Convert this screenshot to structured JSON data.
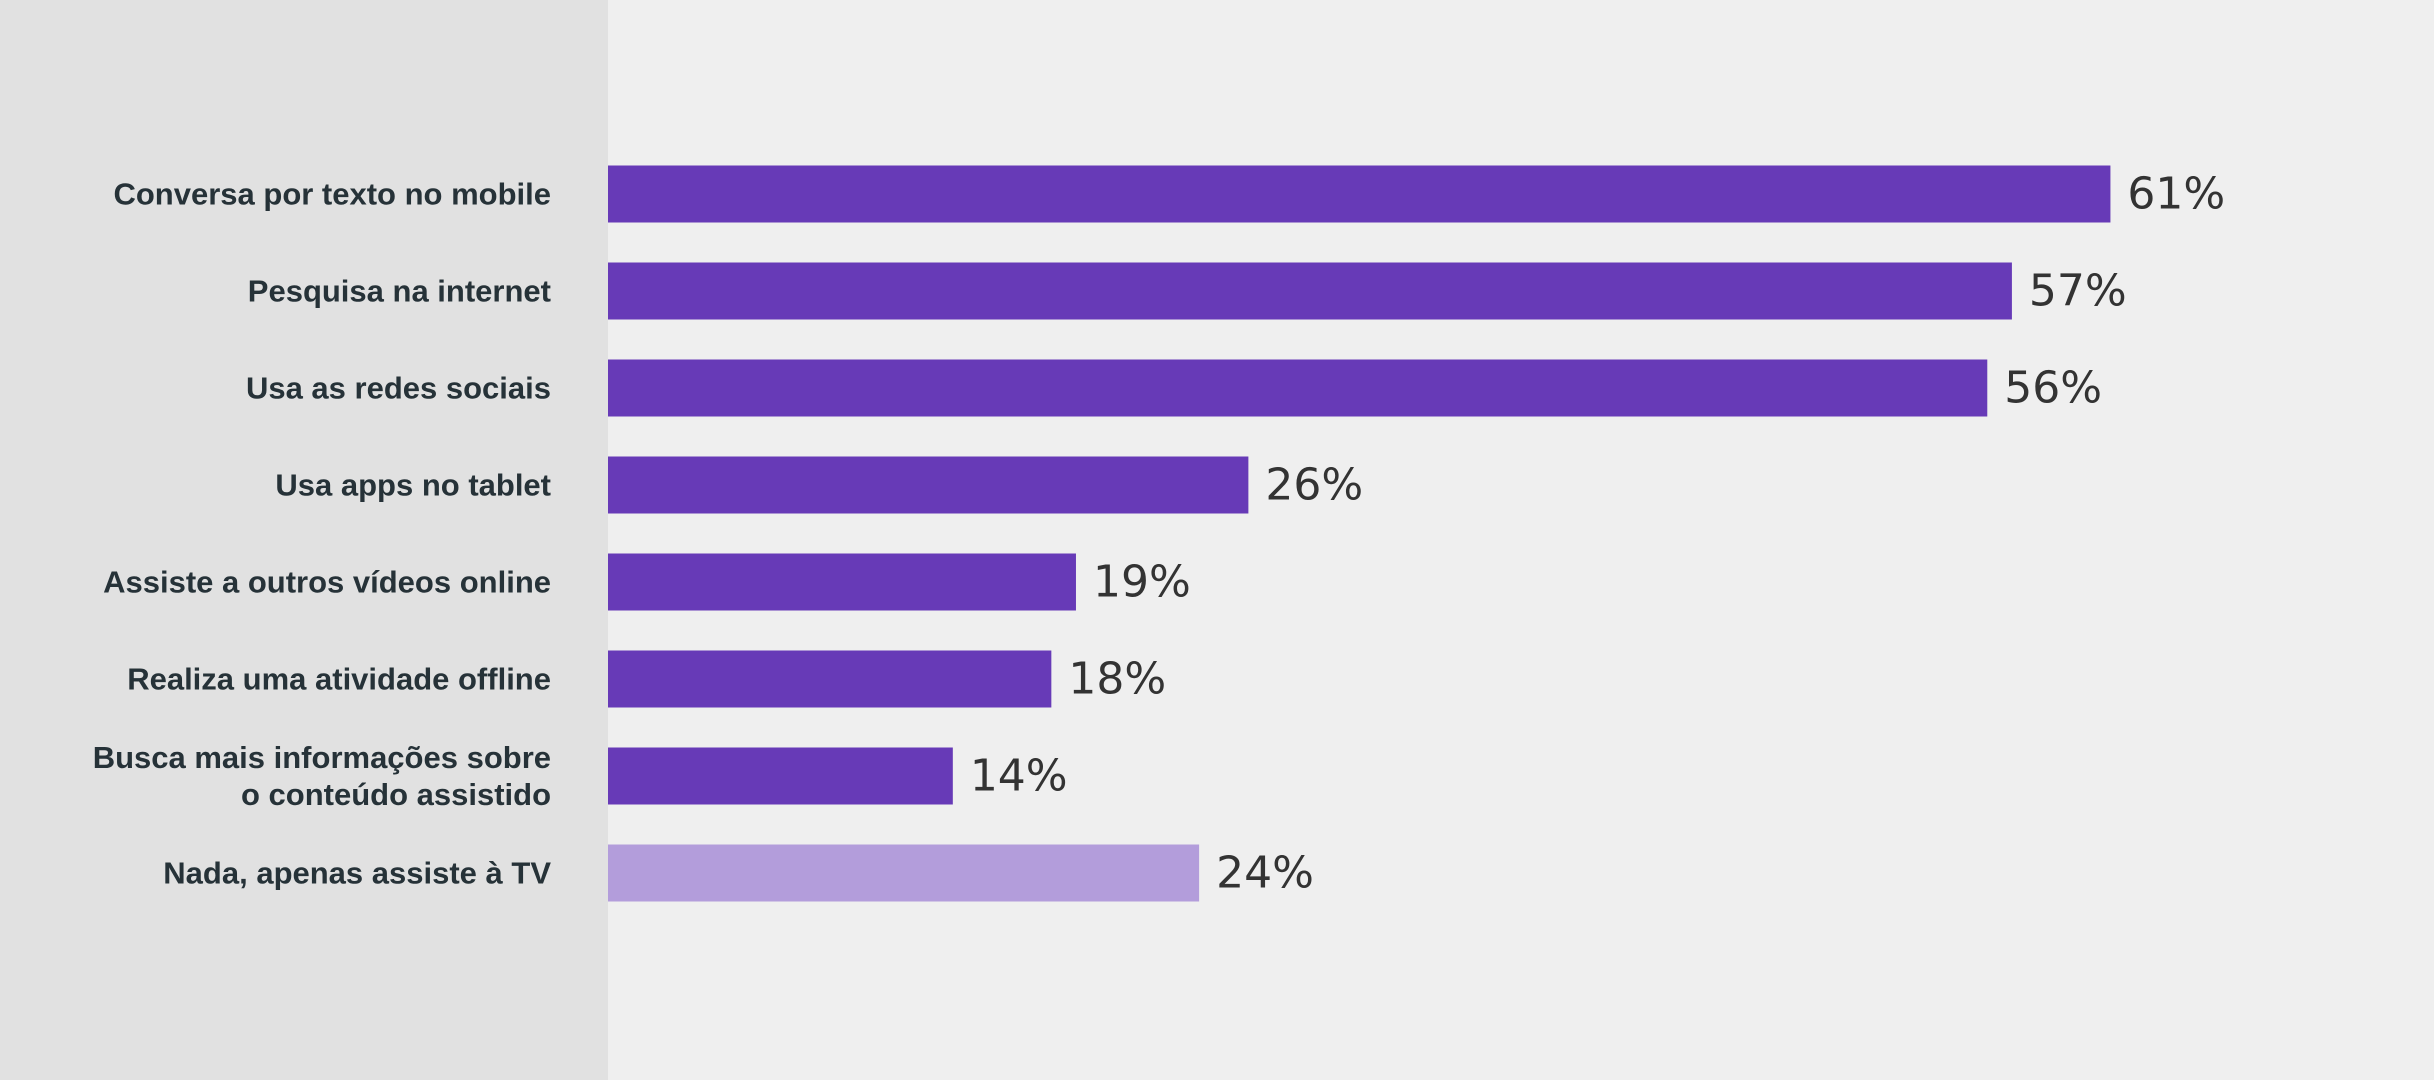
{
  "chart_data": {
    "type": "bar",
    "orientation": "horizontal",
    "categories": [
      "Conversa por texto no mobile",
      "Pesquisa na internet",
      "Usa as redes sociais",
      "Usa apps no tablet",
      "Assiste a outros vídeos online",
      "Realiza uma atividade offline",
      "Busca mais informações sobre o conteúdo assistido",
      "Nada, apenas assiste à TV"
    ],
    "category_lines": [
      [
        "Conversa por texto no mobile"
      ],
      [
        "Pesquisa na internet"
      ],
      [
        "Usa as redes sociais"
      ],
      [
        "Usa apps no tablet"
      ],
      [
        "Assiste a outros vídeos online"
      ],
      [
        "Realiza uma atividade offline"
      ],
      [
        "Busca mais informações sobre",
        "o conteúdo assistido"
      ],
      [
        "Nada, apenas assiste à TV"
      ]
    ],
    "values": [
      61,
      57,
      56,
      26,
      19,
      18,
      14,
      24
    ],
    "data_labels": [
      "61%",
      "57%",
      "56%",
      "26%",
      "19%",
      "18%",
      "14%",
      "24%"
    ],
    "unit": "%",
    "xlim": [
      0,
      100
    ],
    "grid": false,
    "legend": "none",
    "colors": {
      "bar": "#673ab7",
      "bar_highlight": "#b39ddb",
      "label_panel": "#e1e1e1",
      "plot_background": "#efefef",
      "category_text": "#263238",
      "value_text": "#333333"
    },
    "highlight_index": 7
  }
}
